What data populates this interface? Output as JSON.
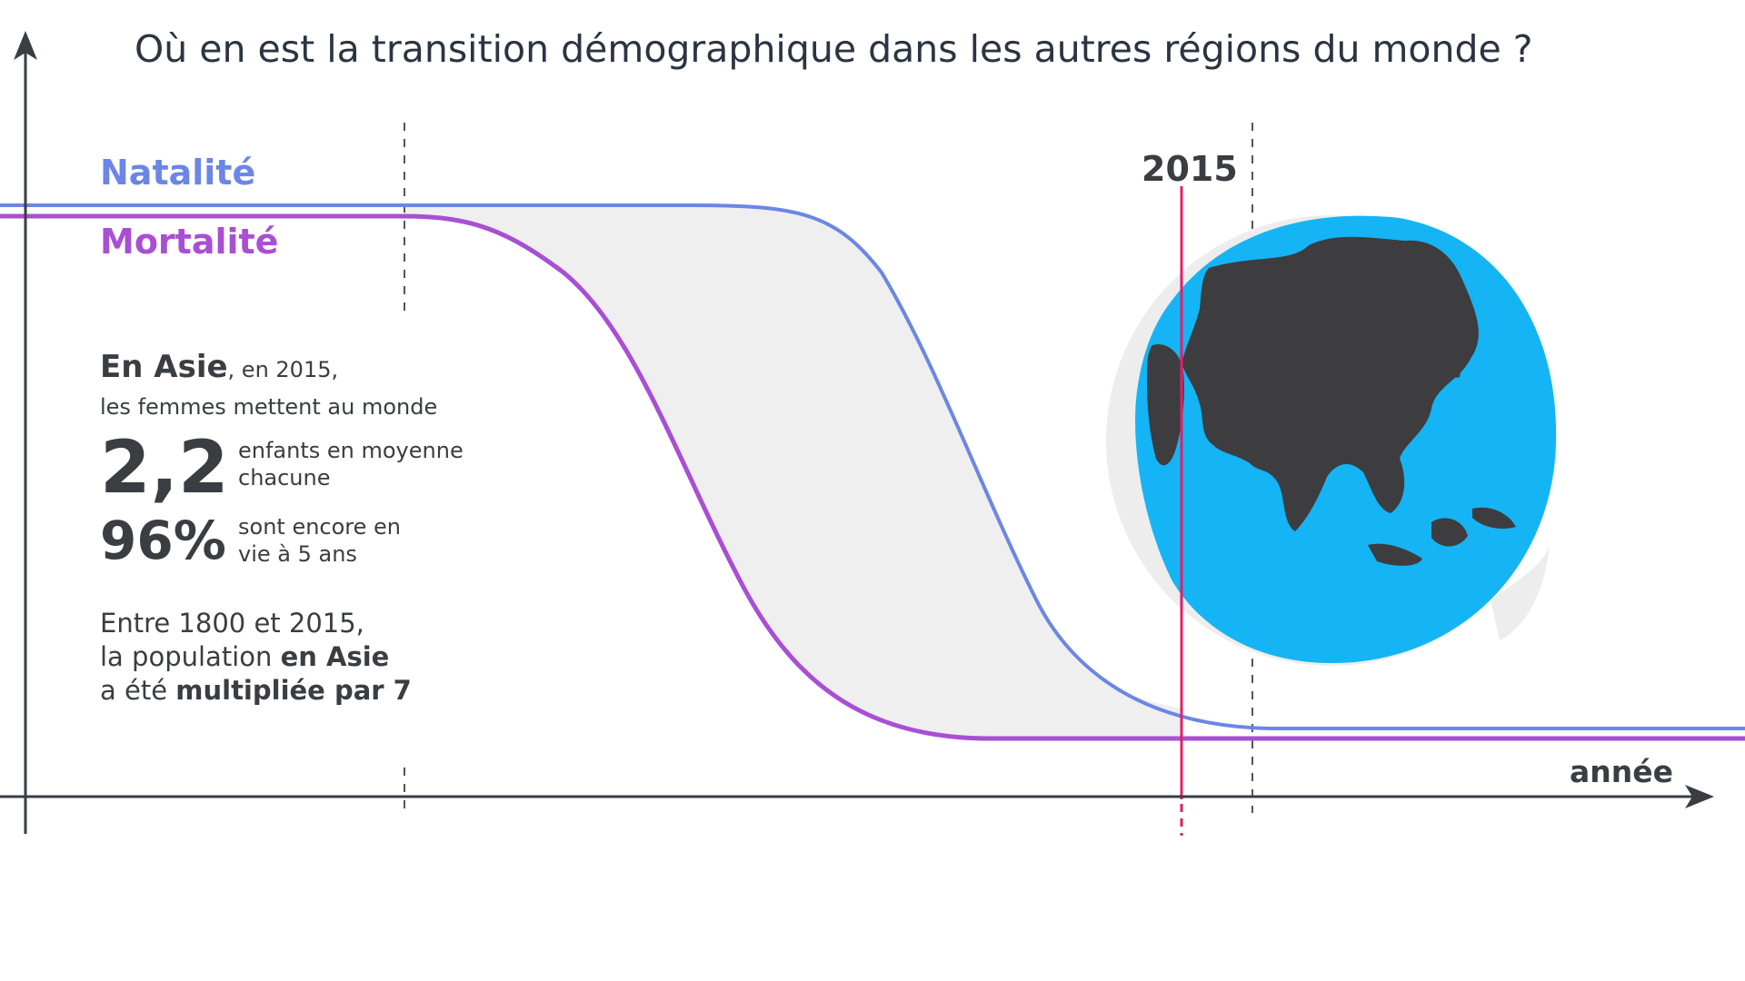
{
  "title": "Où en est la transition démographique dans les autres régions du monde ?",
  "legend": {
    "natalite": "Natalité",
    "mortalite": "Mortalité"
  },
  "marker_year": "2015",
  "x_axis_label": "année",
  "info": {
    "region": "En Asie",
    "region_suffix": ", en 2015,",
    "line2": "les femmes mettent au monde",
    "stat1_value": "2,2",
    "stat1_line1": "enfants en moyenne",
    "stat1_line2": "chacune",
    "stat2_value": "96%",
    "stat2_line1": "sont encore en",
    "stat2_line2": "vie à 5 ans",
    "summary_line1": "Entre 1800 et 2015,",
    "summary_line2_a": "la population ",
    "summary_line2_b": "en Asie",
    "summary_line3_a": "a été ",
    "summary_line3_b": "multipliée par 7"
  },
  "colors": {
    "natalite": "#6b86e6",
    "mortalite": "#a84fd3",
    "marker": "#e0206a",
    "ocean": "#15b4f5",
    "land": "#3d3d3f",
    "gap_fill": "#efefef",
    "axis": "#3a3d42"
  },
  "globe": {
    "icon": "globe-asia-icon"
  }
}
